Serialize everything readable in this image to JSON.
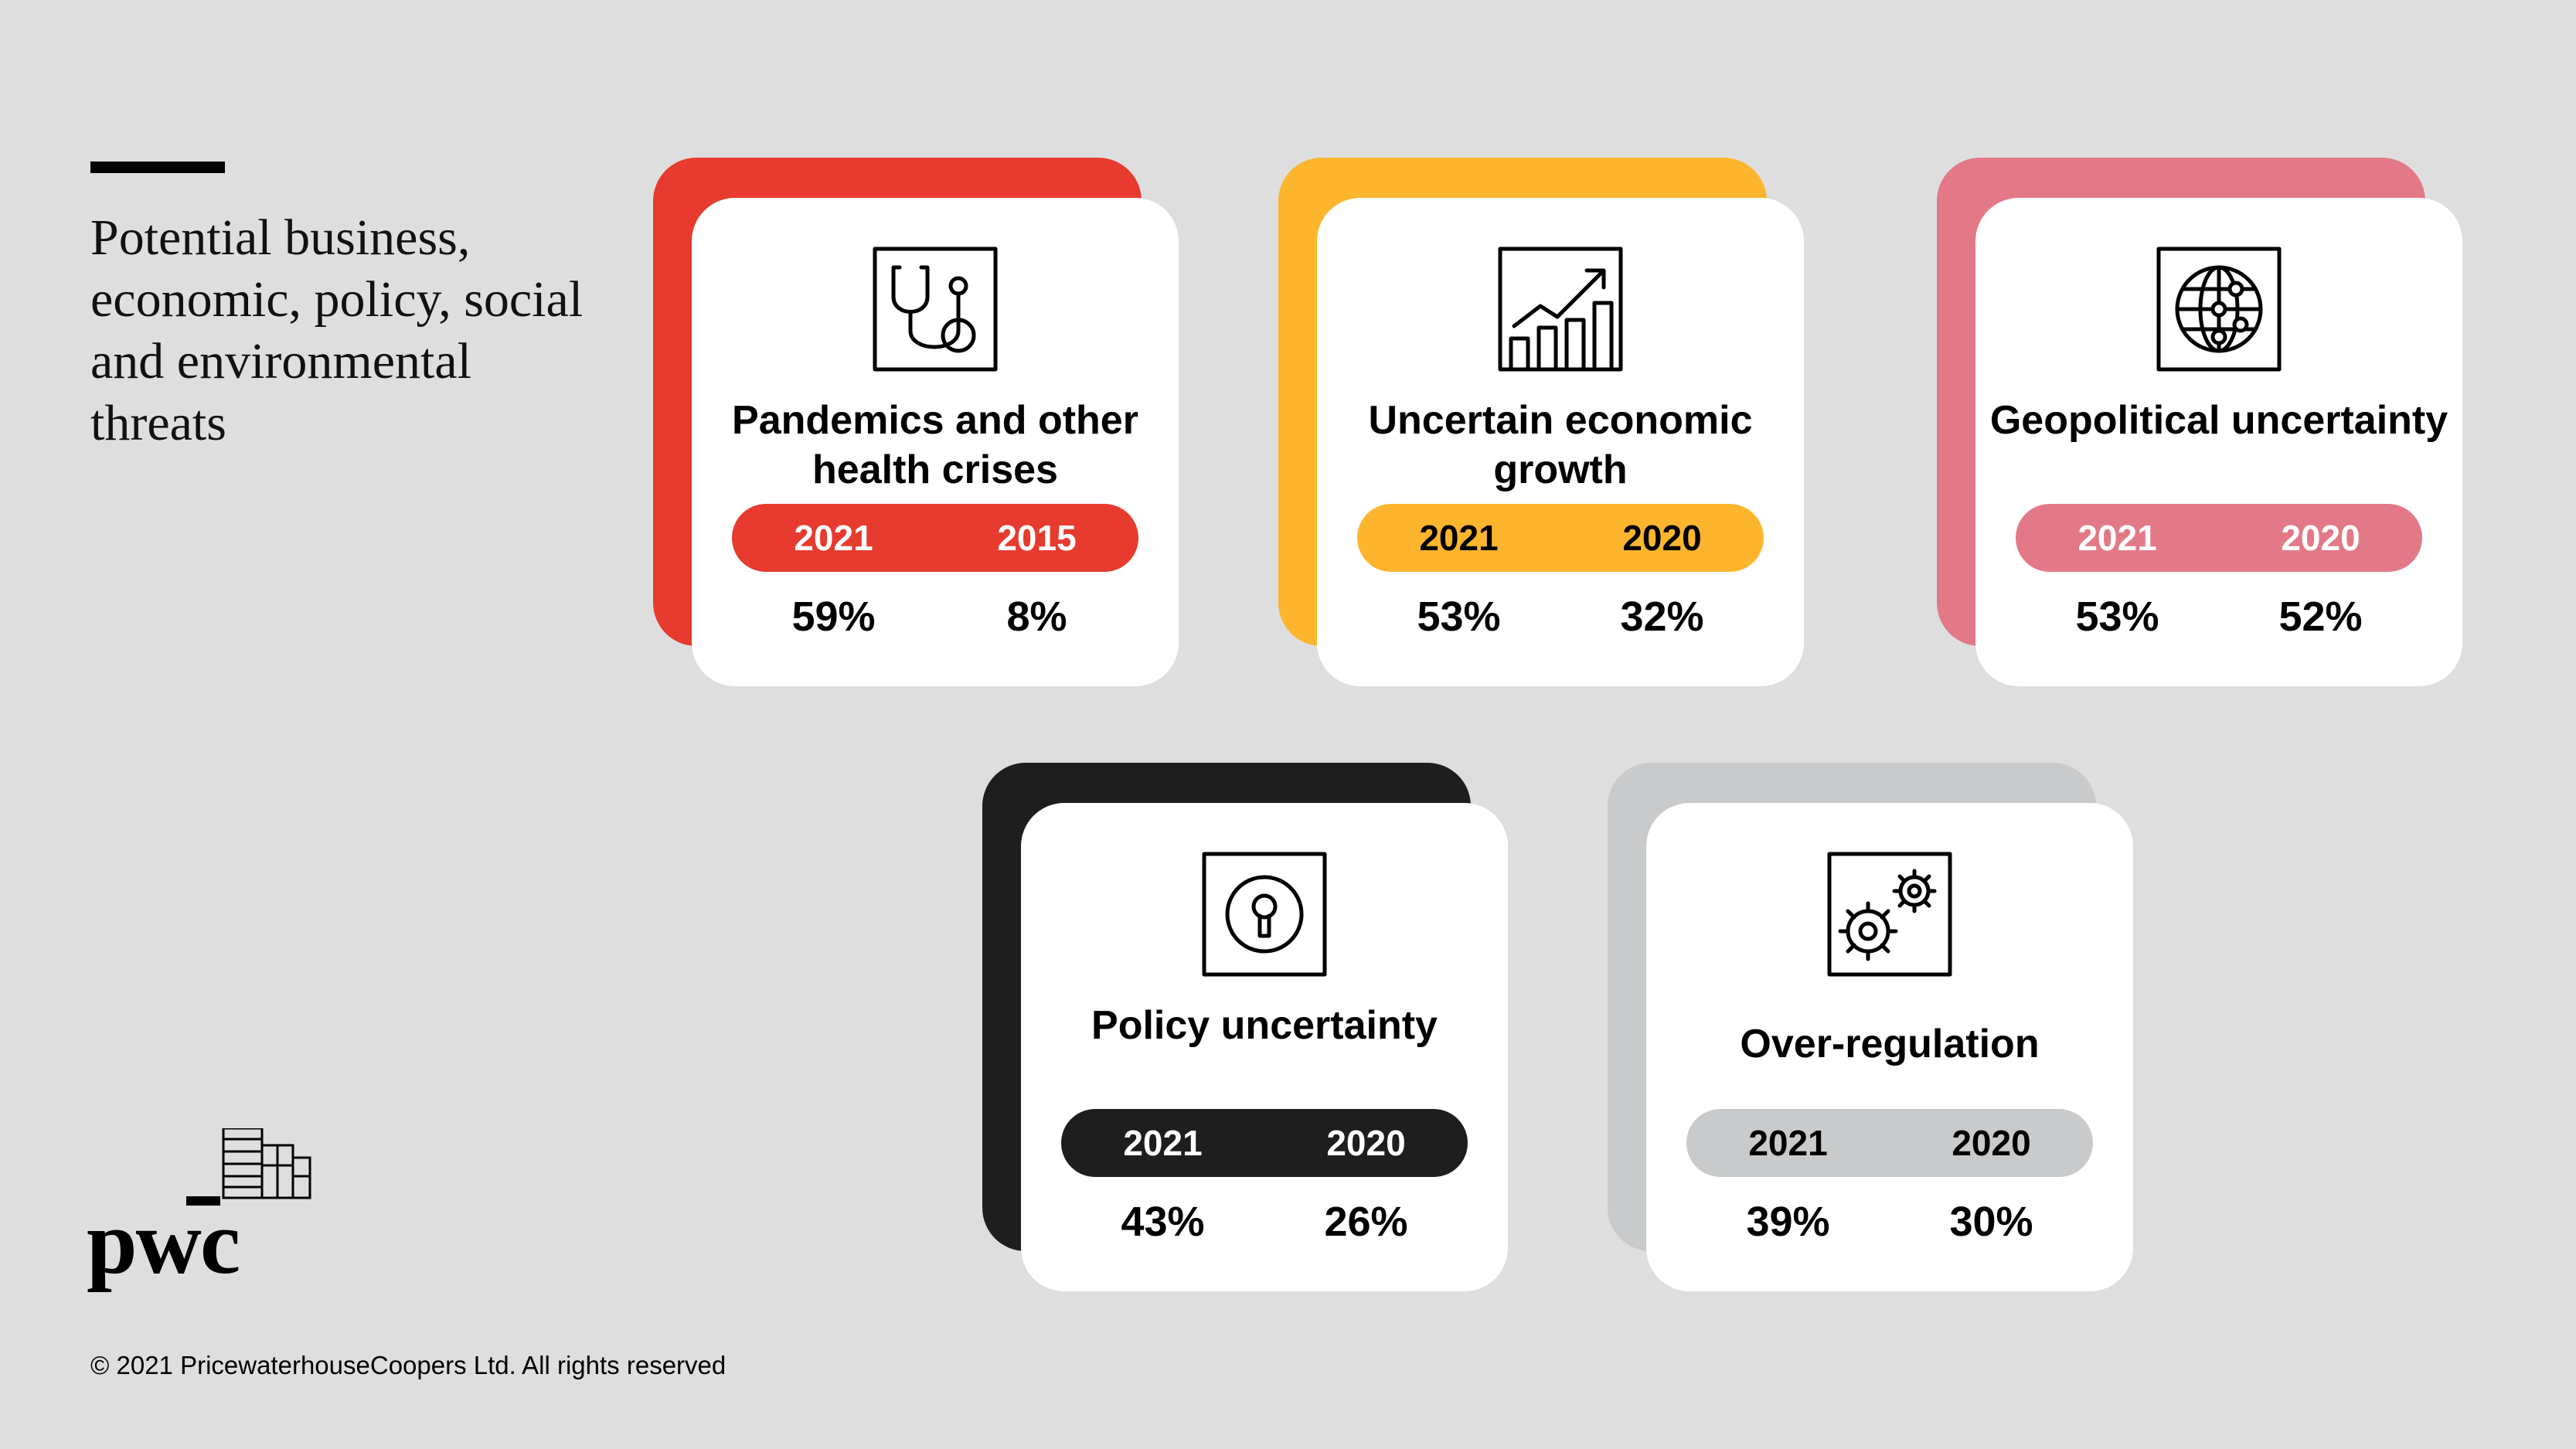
{
  "page": {
    "title": "Potential business, economic, policy, social and environmental threats",
    "copyright": "© 2021 PricewaterhouseCoopers Ltd. All rights reserved",
    "logo_text": "pwc"
  },
  "cards": [
    {
      "id": "pandemics",
      "icon": "stethoscope-icon",
      "title": "Pandemics and other health crises",
      "back_color": "#e63b2e",
      "pill_color": "#e63b2e",
      "pill_text_color": "#ffffff",
      "years": [
        "2021",
        "2015"
      ],
      "values": [
        "59%",
        "8%"
      ]
    },
    {
      "id": "economic-growth",
      "icon": "growth-chart-icon",
      "title": "Uncertain economic growth",
      "back_color": "#fdb52e",
      "pill_color": "#fdb52e",
      "pill_text_color": "#000000",
      "years": [
        "2021",
        "2020"
      ],
      "values": [
        "53%",
        "32%"
      ]
    },
    {
      "id": "geopolitical",
      "icon": "globe-icon",
      "title": "Geopolitical uncertainty",
      "back_color": "#e37987",
      "pill_color": "#e37987",
      "pill_text_color": "#ffffff",
      "years": [
        "2021",
        "2020"
      ],
      "values": [
        "53%",
        "52%"
      ]
    },
    {
      "id": "policy",
      "icon": "keyhole-icon",
      "title": "Policy uncertainty",
      "back_color": "#1e1e1e",
      "pill_color": "#1e1e1e",
      "pill_text_color": "#ffffff",
      "years": [
        "2021",
        "2020"
      ],
      "values": [
        "43%",
        "26%"
      ]
    },
    {
      "id": "over-regulation",
      "icon": "gears-icon",
      "title": "Over-regulation",
      "back_color": "#c9cacb",
      "pill_color": "#c9cacb",
      "pill_text_color": "#000000",
      "years": [
        "2021",
        "2020"
      ],
      "values": [
        "39%",
        "30%"
      ]
    }
  ]
}
